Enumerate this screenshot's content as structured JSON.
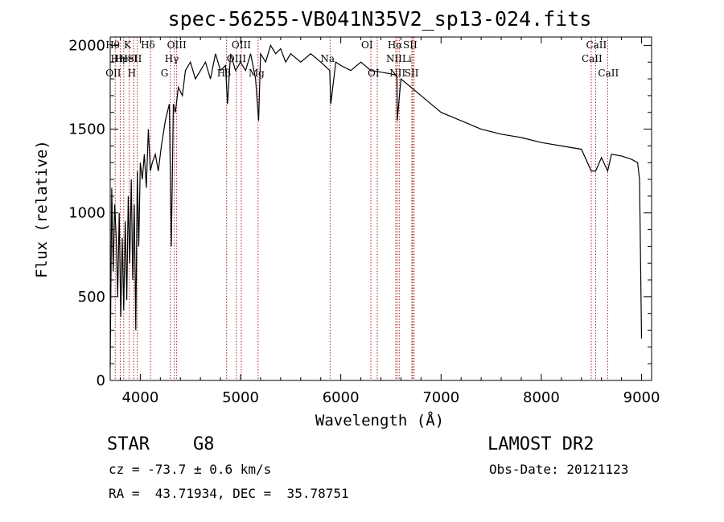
{
  "chart_data": {
    "type": "line",
    "title": "spec-56255-VB041N35V2_sp13-024.fits",
    "xlabel": "Wavelength (Å)",
    "ylabel": "Flux (relative)",
    "xlim": [
      3700,
      9100
    ],
    "ylim": [
      0,
      2050
    ],
    "x_ticks": [
      4000,
      5000,
      6000,
      7000,
      8000,
      9000
    ],
    "x_tick_labels": [
      "4000",
      "5000",
      "6000",
      "7000",
      "8000",
      "9000"
    ],
    "y_ticks": [
      0,
      500,
      1000,
      1500,
      2000
    ],
    "y_tick_labels": [
      "0",
      "500",
      "1000",
      "1500",
      "2000"
    ],
    "grid": false,
    "line_color": "#000000",
    "marker_color": "#b22222",
    "series": [
      {
        "x": [
          3700,
          3715,
          3730,
          3745,
          3760,
          3775,
          3790,
          3805,
          3820,
          3835,
          3850,
          3865,
          3880,
          3895,
          3910,
          3925,
          3940,
          3955,
          3970,
          3985,
          4000,
          4020,
          4040,
          4060,
          4080,
          4100,
          4120,
          4150,
          4180,
          4210,
          4250,
          4290,
          4310,
          4330,
          4350,
          4380,
          4420,
          4450,
          4500,
          4550,
          4600,
          4650,
          4700,
          4750,
          4800,
          4850,
          4870,
          4900,
          4950,
          5000,
          5050,
          5100,
          5150,
          5180,
          5200,
          5250,
          5300,
          5350,
          5400,
          5450,
          5500,
          5600,
          5700,
          5800,
          5890,
          5900,
          5950,
          6000,
          6100,
          6200,
          6300,
          6400,
          6500,
          6560,
          6563,
          6600,
          6700,
          6800,
          6900,
          7000,
          7200,
          7400,
          7600,
          7800,
          8000,
          8200,
          8400,
          8498,
          8542,
          8600,
          8662,
          8700,
          8800,
          8900,
          8960,
          8980,
          9000
        ],
        "y": [
          80,
          1150,
          650,
          1050,
          850,
          500,
          1000,
          380,
          850,
          420,
          950,
          480,
          1100,
          700,
          1200,
          600,
          1050,
          300,
          1250,
          800,
          1300,
          1200,
          1350,
          1150,
          1500,
          1250,
          1300,
          1350,
          1250,
          1400,
          1550,
          1650,
          800,
          1650,
          1600,
          1750,
          1700,
          1850,
          1900,
          1800,
          1850,
          1900,
          1800,
          1950,
          1850,
          1880,
          1650,
          1950,
          1850,
          1900,
          1850,
          1950,
          1800,
          1550,
          1950,
          1900,
          2000,
          1950,
          1980,
          1900,
          1950,
          1900,
          1950,
          1900,
          1850,
          1650,
          1900,
          1880,
          1850,
          1900,
          1850,
          1840,
          1830,
          1820,
          1550,
          1800,
          1750,
          1700,
          1650,
          1600,
          1550,
          1500,
          1470,
          1450,
          1420,
          1400,
          1380,
          1250,
          1250,
          1330,
          1250,
          1350,
          1340,
          1320,
          1300,
          1200,
          250
        ]
      }
    ],
    "line_markers": [
      {
        "x": 3750,
        "labels": [
          "Hθ",
          "OII"
        ],
        "rows": [
          0,
          2
        ]
      },
      {
        "x": 3800,
        "labels": [
          "Hη"
        ],
        "rows": [
          1
        ]
      },
      {
        "x": 3835,
        "labels": [
          "He"
        ],
        "rows": [
          1
        ]
      },
      {
        "x": 3889,
        "labels": [
          "HeI"
        ],
        "rows": [
          1
        ]
      },
      {
        "x": 3934,
        "labels": [
          "K"
        ],
        "rows": [
          0
        ]
      },
      {
        "x": 3970,
        "labels": [
          "SII",
          "H"
        ],
        "rows": [
          1,
          2
        ]
      },
      {
        "x": 4102,
        "labels": [
          "Hδ"
        ],
        "rows": [
          0
        ]
      },
      {
        "x": 4300,
        "labels": [
          "G"
        ],
        "rows": [
          2
        ]
      },
      {
        "x": 4340,
        "labels": [
          "Hγ"
        ],
        "rows": [
          1
        ]
      },
      {
        "x": 4363,
        "labels": [
          "OIII"
        ],
        "rows": [
          0
        ]
      },
      {
        "x": 4861,
        "labels": [
          "Hβ"
        ],
        "rows": [
          2
        ]
      },
      {
        "x": 4959,
        "labels": [
          "OIII"
        ],
        "rows": [
          1
        ]
      },
      {
        "x": 5007,
        "labels": [
          "OIII"
        ],
        "rows": [
          0
        ]
      },
      {
        "x": 5175,
        "labels": [
          "Mg"
        ],
        "rows": [
          2
        ]
      },
      {
        "x": 5893,
        "labels": [
          "Na"
        ],
        "rows": [
          1
        ]
      },
      {
        "x": 6300,
        "labels": [
          "OI"
        ],
        "rows": [
          0
        ]
      },
      {
        "x": 6364,
        "labels": [
          "OI"
        ],
        "rows": [
          2
        ]
      },
      {
        "x": 6548,
        "labels": [
          "NII"
        ],
        "rows": [
          1
        ]
      },
      {
        "x": 6563,
        "labels": [
          "Hα"
        ],
        "rows": [
          0
        ]
      },
      {
        "x": 6583,
        "labels": [
          "NII"
        ],
        "rows": [
          2
        ]
      },
      {
        "x": 6717,
        "labels": [
          "SII"
        ],
        "rows": [
          0
        ]
      },
      {
        "x": 6708,
        "labels": [
          "Li"
        ],
        "rows": [
          1
        ]
      },
      {
        "x": 6731,
        "labels": [
          "SII"
        ],
        "rows": [
          2
        ]
      },
      {
        "x": 8498,
        "labels": [
          "CaII"
        ],
        "rows": [
          1
        ]
      },
      {
        "x": 8542,
        "labels": [
          "CaII"
        ],
        "rows": [
          0
        ]
      },
      {
        "x": 8662,
        "labels": [
          "CaII"
        ],
        "rows": [
          2
        ]
      }
    ]
  },
  "footer": {
    "object_class": "STAR",
    "subclass": "G8",
    "survey": "LAMOST DR2",
    "redshift_text": "cz = -73.7 ± 0.6 km/s",
    "obs_date_text": "Obs-Date: 20121123",
    "coords_text": "RA =  43.71934, DEC =  35.78751"
  }
}
